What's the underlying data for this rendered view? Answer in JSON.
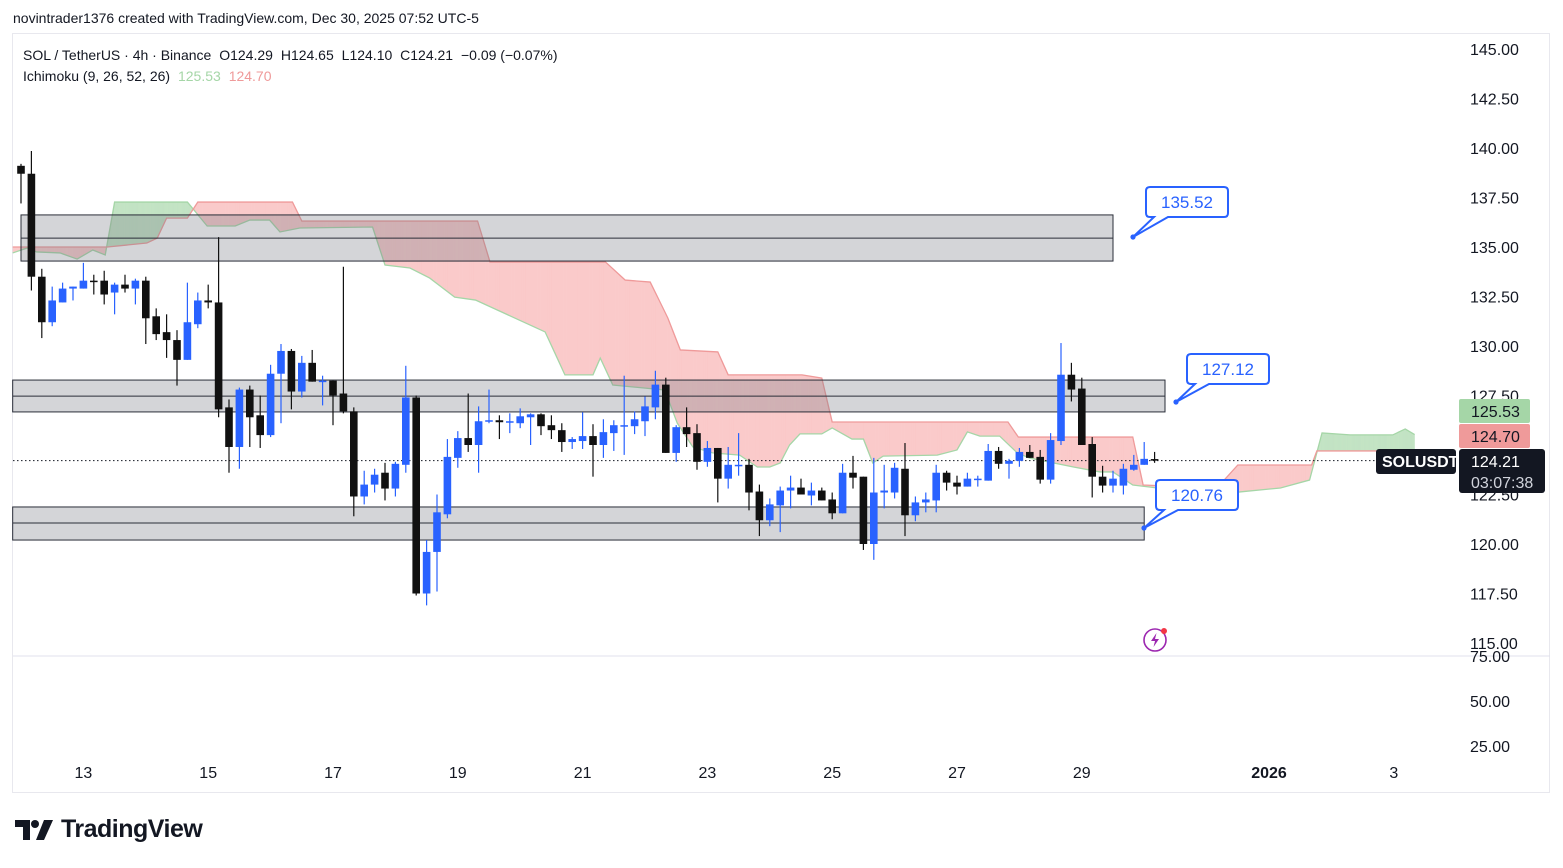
{
  "credit": "novintrader1376 created with TradingView.com, Dec 30, 2025 07:52 UTC-5",
  "legend": {
    "symbol": "SOL / TetherUS · 4h · Binance",
    "open": "O124.29",
    "high": "H124.65",
    "low": "L124.10",
    "close": "C124.21",
    "change": "−0.09 (−0.07%)",
    "indicator": "Ichimoku (9, 26, 52, 26)",
    "span_a_value": "125.53",
    "span_b_value": "124.70"
  },
  "colors": {
    "up": "#2962ff",
    "down": "#111111",
    "span_a": "#a5d6a7",
    "span_b": "#ef9a9a",
    "cloud_up": "rgba(165,214,167,0.6)",
    "cloud_down": "rgba(244,143,143,0.4)",
    "zone_fill": "rgba(120,123,134,0.32)",
    "callout": "#2962ff"
  },
  "price_tags": {
    "span_a": "125.53",
    "span_b": "124.70",
    "last": "124.21",
    "countdown": "03:07:38",
    "symbol": "SOLUSDT"
  },
  "brand": "TradingView",
  "chart_data": {
    "type": "candlestick",
    "title": "SOL / TetherUS · 4h · Binance",
    "interval": "4h",
    "ylim": [
      115,
      145
    ],
    "grid": false,
    "price_ticks": [
      "145.00",
      "142.50",
      "140.00",
      "137.50",
      "135.00",
      "132.50",
      "130.00",
      "127.50",
      "122.50",
      "120.00",
      "117.50",
      "115.00"
    ],
    "lower_pane_ticks": [
      "75.00",
      "50.00",
      "25.00"
    ],
    "time_ticks": [
      {
        "label": "13",
        "bar": 6
      },
      {
        "label": "15",
        "bar": 18
      },
      {
        "label": "17",
        "bar": 30
      },
      {
        "label": "19",
        "bar": 42
      },
      {
        "label": "21",
        "bar": 54
      },
      {
        "label": "23",
        "bar": 66
      },
      {
        "label": "25",
        "bar": 78
      },
      {
        "label": "27",
        "bar": 90
      },
      {
        "label": "29",
        "bar": 102
      },
      {
        "label": "2026",
        "bar": 120,
        "bold": true
      },
      {
        "label": "3",
        "bar": 132
      }
    ],
    "ohlc": [
      [
        139.1,
        139.2,
        137.2,
        138.7
      ],
      [
        138.7,
        139.85,
        132.8,
        133.5
      ],
      [
        133.5,
        133.9,
        130.4,
        131.2
      ],
      [
        131.2,
        133.0,
        131.0,
        132.3
      ],
      [
        132.2,
        133.2,
        132.2,
        132.9
      ],
      [
        132.9,
        133.0,
        132.3,
        133.0
      ],
      [
        132.9,
        134.2,
        132.9,
        133.3
      ],
      [
        133.3,
        133.6,
        132.6,
        133.25
      ],
      [
        133.3,
        133.8,
        132.1,
        132.6
      ],
      [
        132.7,
        133.2,
        131.6,
        133.1
      ],
      [
        133.1,
        133.6,
        132.7,
        132.9
      ],
      [
        132.9,
        133.4,
        132.1,
        133.3
      ],
      [
        133.3,
        133.5,
        130.1,
        131.4
      ],
      [
        131.5,
        131.9,
        130.3,
        130.6
      ],
      [
        130.7,
        131.6,
        129.4,
        130.3
      ],
      [
        130.3,
        130.8,
        128.0,
        129.3
      ],
      [
        129.3,
        133.2,
        129.3,
        131.2
      ],
      [
        131.1,
        132.7,
        130.9,
        132.3
      ],
      [
        132.3,
        133.1,
        131.9,
        132.2
      ],
      [
        132.2,
        135.5,
        126.4,
        126.8
      ],
      [
        126.9,
        127.3,
        123.6,
        124.9
      ],
      [
        124.9,
        127.9,
        123.8,
        127.8
      ],
      [
        127.8,
        128.0,
        124.9,
        126.4
      ],
      [
        126.5,
        127.5,
        124.85,
        125.5
      ],
      [
        125.5,
        129.05,
        125.4,
        128.6
      ],
      [
        128.6,
        130.1,
        126.1,
        129.75
      ],
      [
        129.75,
        129.85,
        126.8,
        127.7
      ],
      [
        127.7,
        129.5,
        127.4,
        129.15
      ],
      [
        129.15,
        129.8,
        128.2,
        128.2
      ],
      [
        128.2,
        128.5,
        127.0,
        128.25
      ],
      [
        128.25,
        128.25,
        126.0,
        127.5
      ],
      [
        127.6,
        134.0,
        126.6,
        126.7
      ],
      [
        126.7,
        126.9,
        121.4,
        122.4
      ],
      [
        122.4,
        123.7,
        122.0,
        123.0
      ],
      [
        123.0,
        123.8,
        122.6,
        123.5
      ],
      [
        123.6,
        124.1,
        122.2,
        122.8
      ],
      [
        122.8,
        124.15,
        122.4,
        124.05
      ],
      [
        124.0,
        129.0,
        123.6,
        127.4
      ],
      [
        127.4,
        127.5,
        117.4,
        117.5
      ],
      [
        117.5,
        120.2,
        116.9,
        119.6
      ],
      [
        119.6,
        122.5,
        117.6,
        121.6
      ],
      [
        121.5,
        125.3,
        121.3,
        124.4
      ],
      [
        124.35,
        125.7,
        123.85,
        125.35
      ],
      [
        125.35,
        127.6,
        124.65,
        125.0
      ],
      [
        125.0,
        126.95,
        123.6,
        126.2
      ],
      [
        126.2,
        127.8,
        126.1,
        126.25
      ],
      [
        126.25,
        126.5,
        125.3,
        126.15
      ],
      [
        126.2,
        126.6,
        125.6,
        126.2
      ],
      [
        126.1,
        126.85,
        125.85,
        126.45
      ],
      [
        126.4,
        126.6,
        125.0,
        126.55
      ],
      [
        126.55,
        126.6,
        125.5,
        125.95
      ],
      [
        126.0,
        126.5,
        125.3,
        125.75
      ],
      [
        125.75,
        126.1,
        124.65,
        125.15
      ],
      [
        125.15,
        125.4,
        124.8,
        125.3
      ],
      [
        125.2,
        126.65,
        124.8,
        125.45
      ],
      [
        125.45,
        126.05,
        123.4,
        125.0
      ],
      [
        125.0,
        126.3,
        124.35,
        125.65
      ],
      [
        125.6,
        126.25,
        124.7,
        126.0
      ],
      [
        126.0,
        128.5,
        124.5,
        126.0
      ],
      [
        125.95,
        126.7,
        125.55,
        126.3
      ],
      [
        126.2,
        127.45,
        125.45,
        126.95
      ],
      [
        126.9,
        128.75,
        126.3,
        128.05
      ],
      [
        128.05,
        128.4,
        124.6,
        124.6
      ],
      [
        124.6,
        126.0,
        124.15,
        125.9
      ],
      [
        125.9,
        126.9,
        124.9,
        125.55
      ],
      [
        125.6,
        126.05,
        123.75,
        124.15
      ],
      [
        124.15,
        125.2,
        123.9,
        124.85
      ],
      [
        124.85,
        124.85,
        122.1,
        123.3
      ],
      [
        123.3,
        124.9,
        122.8,
        124.0
      ],
      [
        124.0,
        125.6,
        123.45,
        124.0
      ],
      [
        124.0,
        124.3,
        121.7,
        122.6
      ],
      [
        122.65,
        123.0,
        120.4,
        121.2
      ],
      [
        121.2,
        122.3,
        120.9,
        122.0
      ],
      [
        121.95,
        122.9,
        120.6,
        122.7
      ],
      [
        122.7,
        123.45,
        121.8,
        122.85
      ],
      [
        122.85,
        123.3,
        122.5,
        122.5
      ],
      [
        122.45,
        123.1,
        121.95,
        122.7
      ],
      [
        122.7,
        122.85,
        122.2,
        122.2
      ],
      [
        122.25,
        122.6,
        121.25,
        121.55
      ],
      [
        121.55,
        124.05,
        121.55,
        123.6
      ],
      [
        123.6,
        124.45,
        122.8,
        123.35
      ],
      [
        123.4,
        123.4,
        119.7,
        120.0
      ],
      [
        120.0,
        124.35,
        119.2,
        122.6
      ],
      [
        122.6,
        124.0,
        121.8,
        122.7
      ],
      [
        122.6,
        124.1,
        122.3,
        123.85
      ],
      [
        123.8,
        125.1,
        120.4,
        121.45
      ],
      [
        121.45,
        122.4,
        121.15,
        122.1
      ],
      [
        122.1,
        122.6,
        121.6,
        122.25
      ],
      [
        122.2,
        124.0,
        121.6,
        123.6
      ],
      [
        123.6,
        123.7,
        122.7,
        123.1
      ],
      [
        123.1,
        123.45,
        122.5,
        122.9
      ],
      [
        122.9,
        123.6,
        122.9,
        123.3
      ],
      [
        123.3,
        123.45,
        122.9,
        123.3
      ],
      [
        123.2,
        125.05,
        123.2,
        124.7
      ],
      [
        124.7,
        124.9,
        123.8,
        124.05
      ],
      [
        124.05,
        124.3,
        123.3,
        124.2
      ],
      [
        124.2,
        124.85,
        123.9,
        124.65
      ],
      [
        124.65,
        125.0,
        124.35,
        124.35
      ],
      [
        124.4,
        124.75,
        123.05,
        123.25
      ],
      [
        123.25,
        125.6,
        123.05,
        125.25
      ],
      [
        125.2,
        130.15,
        125.0,
        128.55
      ],
      [
        128.55,
        129.15,
        127.2,
        127.8
      ],
      [
        127.85,
        128.4,
        125.0,
        125.0
      ],
      [
        125.05,
        125.4,
        122.35,
        123.4
      ],
      [
        123.4,
        123.95,
        122.6,
        122.95
      ],
      [
        122.95,
        123.7,
        122.6,
        123.3
      ],
      [
        122.95,
        124.05,
        122.5,
        123.8
      ],
      [
        123.75,
        124.5,
        123.7,
        124.0
      ],
      [
        124.0,
        125.15,
        124.0,
        124.3
      ],
      [
        124.29,
        124.65,
        124.1,
        124.21
      ]
    ],
    "ichimoku": {
      "span_a": [
        [
          -0.8,
          134.7
        ],
        [
          0.6,
          134.95
        ],
        [
          1.5,
          134.75
        ],
        [
          3.75,
          134.7
        ],
        [
          5.4,
          134.39
        ],
        [
          6.9,
          134.85
        ],
        [
          8.1,
          134.6
        ],
        [
          9.0,
          137.27
        ],
        [
          16.0,
          137.27
        ],
        [
          17.9,
          136.06
        ],
        [
          20.6,
          136.06
        ],
        [
          22.0,
          136.36
        ],
        [
          23.9,
          136.36
        ],
        [
          24.9,
          135.76
        ],
        [
          26.8,
          135.96
        ],
        [
          33.8,
          136.01
        ],
        [
          35.0,
          134.09
        ],
        [
          37.4,
          133.94
        ],
        [
          39.3,
          133.43
        ],
        [
          41.7,
          132.47
        ],
        [
          43.7,
          132.32
        ],
        [
          50.4,
          130.71
        ],
        [
          52.3,
          128.54
        ],
        [
          55.0,
          128.54
        ],
        [
          55.7,
          129.39
        ],
        [
          56.9,
          128.03
        ],
        [
          61.9,
          127.78
        ],
        [
          63.1,
          126.11
        ],
        [
          64.6,
          124.9
        ],
        [
          66.5,
          124.6
        ],
        [
          69.1,
          124.49
        ],
        [
          70.8,
          123.89
        ],
        [
          72.0,
          123.89
        ],
        [
          73.0,
          124.09
        ],
        [
          73.9,
          125.0
        ],
        [
          74.9,
          125.56
        ],
        [
          77.0,
          125.56
        ],
        [
          78.0,
          125.86
        ],
        [
          79.9,
          125.3
        ],
        [
          81.0,
          125.3
        ],
        [
          81.9,
          124.09
        ],
        [
          82.9,
          124.44
        ],
        [
          88.1,
          124.49
        ],
        [
          90.0,
          124.75
        ],
        [
          91.0,
          125.66
        ],
        [
          92.2,
          125.45
        ],
        [
          94.1,
          125.45
        ],
        [
          95.8,
          124.6
        ],
        [
          97.0,
          124.34
        ],
        [
          101.2,
          123.89
        ],
        [
          103.75,
          123.64
        ],
        [
          105.0,
          123.64
        ],
        [
          106.9,
          122.98
        ],
        [
          115.0,
          122.47
        ],
        [
          117.2,
          122.63
        ],
        [
          121.1,
          122.83
        ],
        [
          123.9,
          123.23
        ],
        [
          125.1,
          125.61
        ],
        [
          127.8,
          125.51
        ],
        [
          131.9,
          125.51
        ],
        [
          133.1,
          125.81
        ],
        [
          134.0,
          125.53
        ]
      ],
      "span_b": [
        [
          -0.8,
          135.0
        ],
        [
          8.3,
          135.0
        ],
        [
          12.1,
          135.2
        ],
        [
          13.1,
          135.45
        ],
        [
          14.0,
          136.46
        ],
        [
          16.0,
          136.46
        ],
        [
          17.0,
          137.27
        ],
        [
          26.1,
          137.27
        ],
        [
          27.0,
          136.31
        ],
        [
          43.9,
          136.31
        ],
        [
          45.1,
          134.24
        ],
        [
          56.2,
          134.24
        ],
        [
          58.1,
          133.33
        ],
        [
          60.5,
          133.23
        ],
        [
          62.2,
          131.41
        ],
        [
          63.4,
          129.8
        ],
        [
          67.0,
          129.7
        ],
        [
          68.0,
          128.54
        ],
        [
          75.1,
          128.54
        ],
        [
          77.0,
          128.38
        ],
        [
          78.0,
          126.16
        ],
        [
          94.9,
          126.16
        ],
        [
          95.9,
          125.4
        ],
        [
          106.9,
          125.4
        ],
        [
          107.9,
          122.98
        ],
        [
          115.0,
          122.83
        ],
        [
          117.0,
          123.99
        ],
        [
          124.1,
          123.99
        ],
        [
          124.6,
          124.7
        ],
        [
          134.0,
          124.7
        ]
      ]
    },
    "zones": [
      {
        "top": 136.62,
        "bottom": 134.29,
        "mid": 135.45,
        "from_bar": 0,
        "to_bar": 105,
        "label": "135.52"
      },
      {
        "top": 128.28,
        "bottom": 126.67,
        "mid": 127.47,
        "from_bar": -0.8,
        "to_bar": 110,
        "label": "127.12"
      },
      {
        "top": 121.87,
        "bottom": 120.2,
        "mid": 121.06,
        "from_bar": -0.8,
        "to_bar": 108,
        "label": "120.76"
      }
    ],
    "last_price": 124.21
  }
}
